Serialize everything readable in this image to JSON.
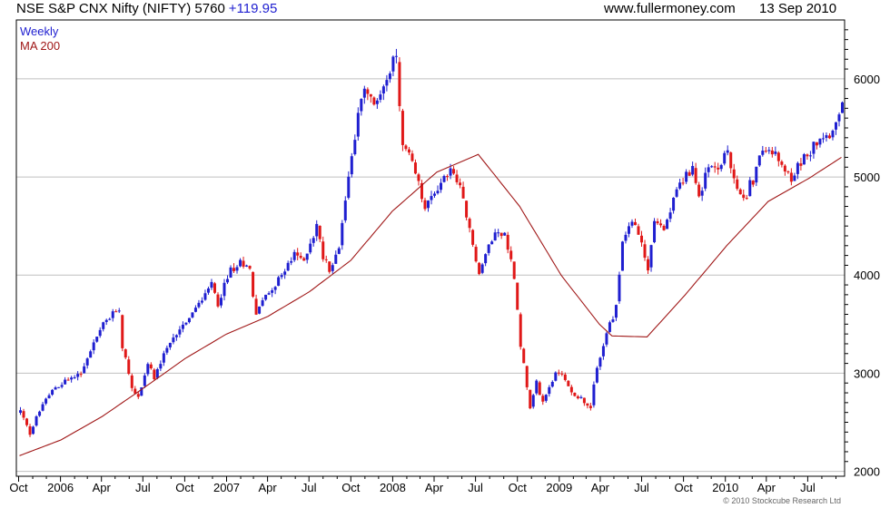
{
  "header": {
    "title": "NSE S&P CNX Nifty (NIFTY) 5760",
    "change": "+119.95",
    "site": "www.fullermoney.com",
    "date": "13 Sep 2010"
  },
  "footer": {
    "copyright": "© 2010 Stockcube Research Ltd"
  },
  "colors": {
    "up": "#1f1fd0",
    "down": "#e01818",
    "ma": "#a01818",
    "grid": "#bfbfbf",
    "legend_weekly": "#1f1fd0",
    "legend_ma": "#a01818"
  },
  "chart_data": {
    "type": "candlestick",
    "legend": [
      "Weekly",
      "MA 200"
    ],
    "legend_placement": "top-left",
    "grid": true,
    "y_axis_side": "right",
    "ylim": [
      1950,
      6600
    ],
    "y_ticks": [
      2000,
      3000,
      4000,
      5000,
      6000
    ],
    "x_ticks": [
      "Oct",
      "2006",
      "Apr",
      "Jul",
      "Oct",
      "2007",
      "Apr",
      "Jul",
      "Oct",
      "2008",
      "Apr",
      "Jul",
      "Oct",
      "2009",
      "Apr",
      "Jul",
      "Oct",
      "2010",
      "Apr",
      "Jul"
    ],
    "price_points": [
      [
        "2005-10-03",
        2620
      ],
      [
        "2005-10-24",
        2380
      ],
      [
        "2005-11-14",
        2620
      ],
      [
        "2005-12-12",
        2820
      ],
      [
        "2006-01-02",
        2900
      ],
      [
        "2006-02-13",
        3000
      ],
      [
        "2006-03-13",
        3300
      ],
      [
        "2006-04-10",
        3550
      ],
      [
        "2006-05-08",
        3650
      ],
      [
        "2006-05-15",
        3300
      ],
      [
        "2006-06-05",
        2850
      ],
      [
        "2006-06-19",
        2750
      ],
      [
        "2006-07-10",
        3100
      ],
      [
        "2006-07-24",
        2950
      ],
      [
        "2006-08-21",
        3250
      ],
      [
        "2006-09-18",
        3450
      ],
      [
        "2006-10-23",
        3650
      ],
      [
        "2006-11-27",
        3900
      ],
      [
        "2006-12-11",
        3700
      ],
      [
        "2007-01-08",
        4050
      ],
      [
        "2007-02-05",
        4120
      ],
      [
        "2007-02-19",
        4050
      ],
      [
        "2007-03-05",
        3600
      ],
      [
        "2007-03-26",
        3800
      ],
      [
        "2007-04-16",
        3900
      ],
      [
        "2007-05-28",
        4200
      ],
      [
        "2007-06-18",
        4150
      ],
      [
        "2007-07-16",
        4500
      ],
      [
        "2007-07-30",
        4200
      ],
      [
        "2007-08-13",
        4050
      ],
      [
        "2007-09-03",
        4300
      ],
      [
        "2007-09-24",
        5000
      ],
      [
        "2007-10-15",
        5650
      ],
      [
        "2007-10-29",
        5900
      ],
      [
        "2007-11-19",
        5700
      ],
      [
        "2007-12-10",
        5950
      ],
      [
        "2008-01-07",
        6200
      ],
      [
        "2008-01-21",
        5300
      ],
      [
        "2008-02-04",
        5200
      ],
      [
        "2008-02-18",
        5000
      ],
      [
        "2008-03-10",
        4700
      ],
      [
        "2008-03-24",
        4800
      ],
      [
        "2008-04-14",
        4900
      ],
      [
        "2008-05-05",
        5100
      ],
      [
        "2008-05-26",
        4850
      ],
      [
        "2008-06-16",
        4500
      ],
      [
        "2008-07-07",
        4000
      ],
      [
        "2008-07-21",
        4200
      ],
      [
        "2008-08-11",
        4450
      ],
      [
        "2008-09-01",
        4400
      ],
      [
        "2008-09-22",
        4000
      ],
      [
        "2008-10-06",
        3300
      ],
      [
        "2008-10-27",
        2650
      ],
      [
        "2008-11-10",
        2900
      ],
      [
        "2008-11-24",
        2700
      ],
      [
        "2008-12-15",
        2950
      ],
      [
        "2009-01-05",
        3000
      ],
      [
        "2009-01-26",
        2800
      ],
      [
        "2009-02-16",
        2750
      ],
      [
        "2009-03-09",
        2650
      ],
      [
        "2009-03-23",
        3050
      ],
      [
        "2009-04-13",
        3400
      ],
      [
        "2009-05-04",
        3650
      ],
      [
        "2009-05-18",
        4350
      ],
      [
        "2009-06-08",
        4550
      ],
      [
        "2009-06-29",
        4350
      ],
      [
        "2009-07-13",
        4050
      ],
      [
        "2009-07-27",
        4550
      ],
      [
        "2009-08-17",
        4450
      ],
      [
        "2009-09-07",
        4750
      ],
      [
        "2009-09-28",
        5000
      ],
      [
        "2009-10-19",
        5100
      ],
      [
        "2009-11-02",
        4800
      ],
      [
        "2009-11-23",
        5100
      ],
      [
        "2009-12-14",
        5100
      ],
      [
        "2010-01-04",
        5250
      ],
      [
        "2010-01-25",
        4850
      ],
      [
        "2010-02-15",
        4800
      ],
      [
        "2010-03-08",
        5100
      ],
      [
        "2010-03-29",
        5300
      ],
      [
        "2010-04-19",
        5250
      ],
      [
        "2010-05-10",
        5050
      ],
      [
        "2010-05-24",
        4950
      ],
      [
        "2010-06-14",
        5150
      ],
      [
        "2010-07-05",
        5300
      ],
      [
        "2010-07-26",
        5400
      ],
      [
        "2010-08-16",
        5450
      ],
      [
        "2010-09-06",
        5600
      ],
      [
        "2010-09-13",
        5760
      ]
    ],
    "ma200_points": [
      [
        "2005-10-03",
        2160
      ],
      [
        "2006-01-02",
        2320
      ],
      [
        "2006-04-03",
        2560
      ],
      [
        "2006-07-03",
        2850
      ],
      [
        "2006-10-02",
        3150
      ],
      [
        "2007-01-01",
        3400
      ],
      [
        "2007-04-02",
        3580
      ],
      [
        "2007-07-02",
        3830
      ],
      [
        "2007-10-01",
        4150
      ],
      [
        "2007-12-31",
        4650
      ],
      [
        "2008-04-07",
        5050
      ],
      [
        "2008-07-07",
        5230
      ],
      [
        "2008-10-06",
        4700
      ],
      [
        "2009-01-05",
        4000
      ],
      [
        "2009-03-30",
        3500
      ],
      [
        "2009-04-27",
        3380
      ],
      [
        "2009-07-13",
        3370
      ],
      [
        "2009-10-05",
        3800
      ],
      [
        "2010-01-04",
        4300
      ],
      [
        "2010-04-05",
        4750
      ],
      [
        "2010-07-05",
        4990
      ],
      [
        "2010-09-13",
        5200
      ]
    ]
  }
}
